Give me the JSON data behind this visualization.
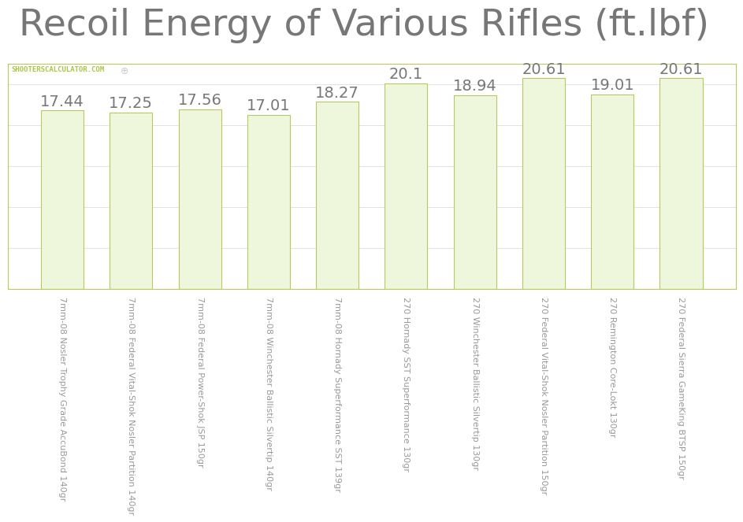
{
  "title": "Recoil Energy of Various Rifles (ft.lbf)",
  "categories": [
    "7mm-08 Nosler Trophy Grade AccuBond 140gr",
    "7mm-08 Federal Vital-Shok Nosler Partition 140gr",
    "7mm-08 Federal Power-Shok JSP 150gr",
    "7mm-08 Winchester Ballistic Silvertip 140gr",
    "7mm-08 Hornady Superformance SST 139gr",
    "270 Hornady SST Superformance 130gr",
    "270 Winchester Ballistic Silvertip 130gr",
    "270 Federal Vital-Shok Nosler Partition 150gr",
    "270 Remington Core-Lokt 130gr",
    "270 Federal Sierra GameKing BTSP 150gr"
  ],
  "values": [
    17.44,
    17.25,
    17.56,
    17.01,
    18.27,
    20.1,
    18.94,
    20.61,
    19.01,
    20.61
  ],
  "bar_color": "#eef7dc",
  "bar_edge_color": "#b5cc5a",
  "background_color": "#ffffff",
  "plot_bg_color": "#ffffff",
  "grid_color": "#dddddd",
  "title_color": "#777777",
  "label_color": "#999999",
  "value_label_color": "#777777",
  "watermark_text": "SHOOTERSCALCULATOR.COM",
  "watermark_color": "#a8c840",
  "spine_color": "#b5cc5a",
  "title_fontsize": 34,
  "value_fontsize": 14,
  "tick_label_fontsize": 8,
  "ylim": [
    0,
    22
  ],
  "grid_yticks": [
    4,
    8,
    12,
    16,
    20
  ]
}
